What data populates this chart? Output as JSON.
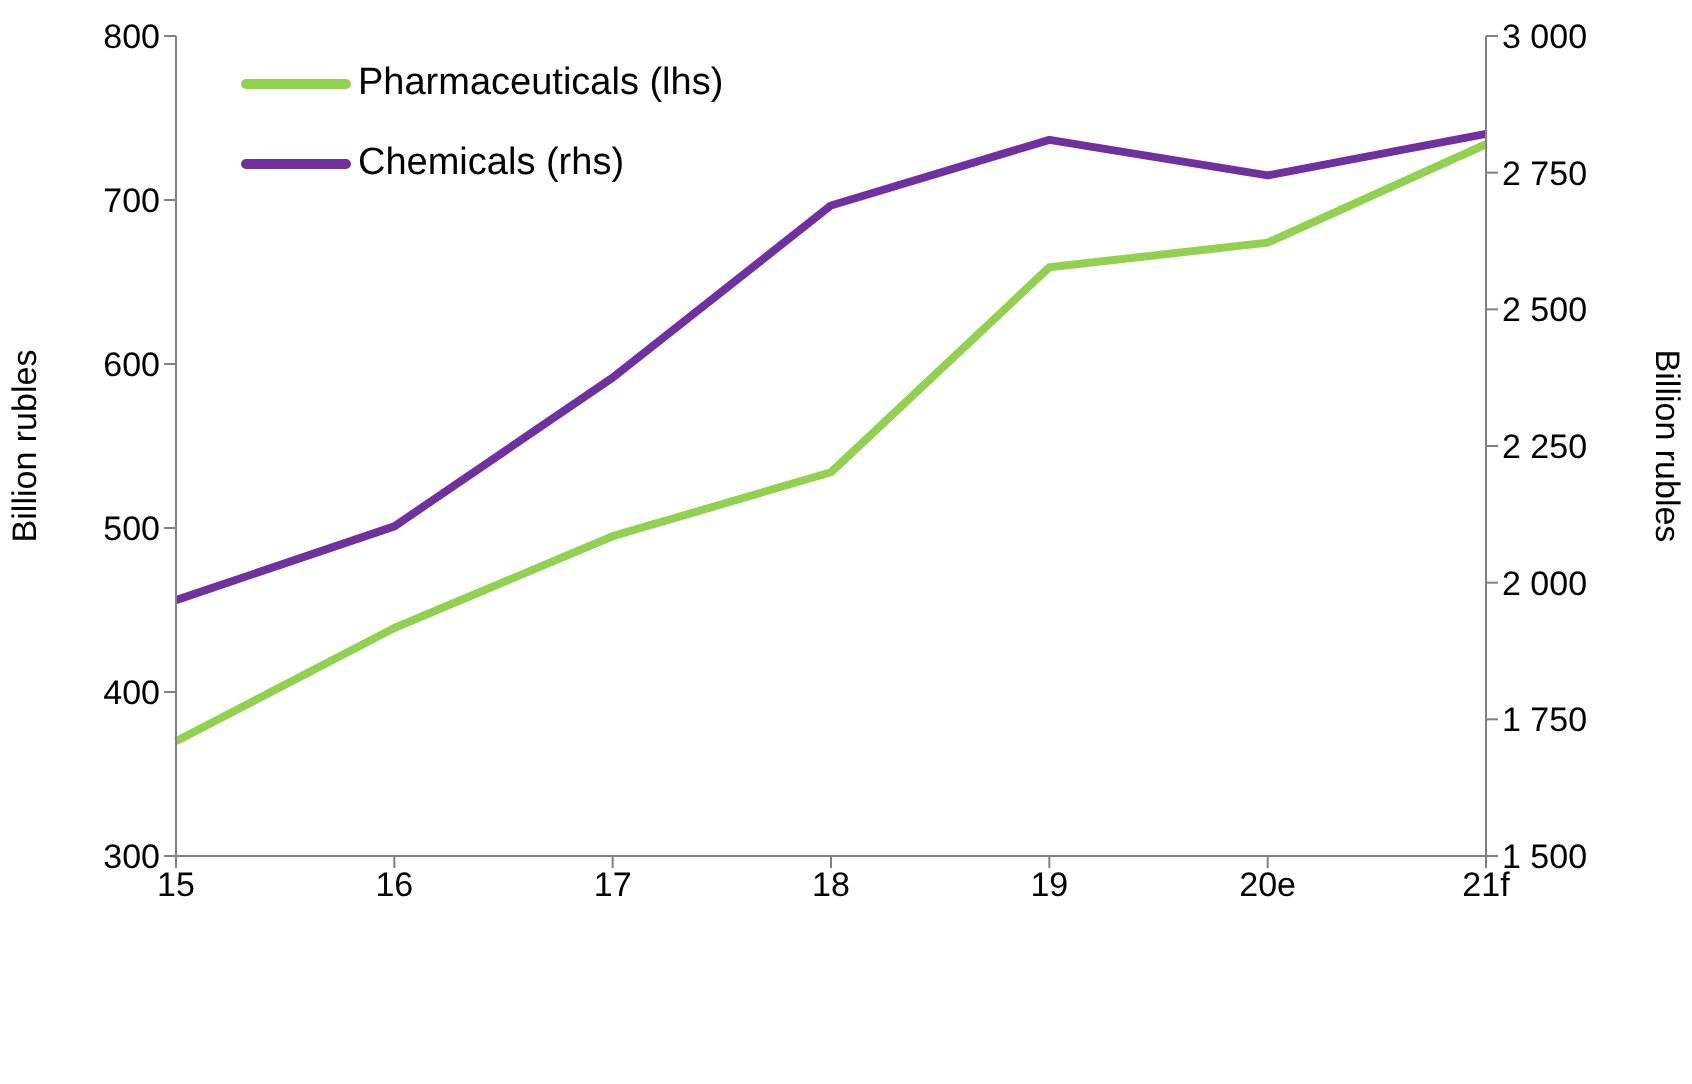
{
  "chart_data": {
    "type": "line",
    "categories": [
      "15",
      "16",
      "17",
      "18",
      "19",
      "20e",
      "21f"
    ],
    "ylabel": "Billion rubles",
    "y2label": "Billion rubles",
    "ylim": [
      300,
      800
    ],
    "yticks": [
      300,
      400,
      500,
      600,
      700,
      800
    ],
    "y2lim": [
      1500,
      3000
    ],
    "y2ticks": [
      {
        "value": 1500,
        "label": "1 500"
      },
      {
        "value": 1750,
        "label": "1 750"
      },
      {
        "value": 2000,
        "label": "2 000"
      },
      {
        "value": 2250,
        "label": "2 250"
      },
      {
        "value": 2500,
        "label": "2 500"
      },
      {
        "value": 2750,
        "label": "2 750"
      },
      {
        "value": 3000,
        "label": "3 000"
      }
    ],
    "series": [
      {
        "name": "Pharmaceuticals (lhs)",
        "color": "#92d050",
        "values": [
          370,
          439,
          495,
          534,
          659,
          674,
          734
        ]
      },
      {
        "name": "Chemicals (rhs)",
        "color": "#7030a0",
        "axis": "y2",
        "values": [
          1968,
          2103,
          2375,
          2690,
          2810,
          2745,
          2821
        ]
      }
    ],
    "legend": "top left",
    "grid": false,
    "marker": "none",
    "line_style": "solid"
  }
}
